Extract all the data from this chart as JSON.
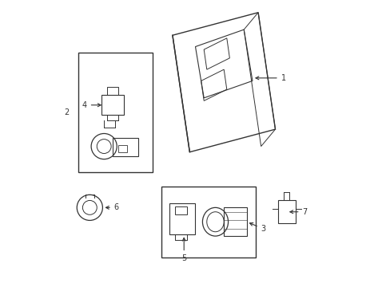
{
  "bg_color": "#ffffff",
  "line_color": "#333333",
  "figsize": [
    4.89,
    3.6
  ],
  "dpi": 100
}
